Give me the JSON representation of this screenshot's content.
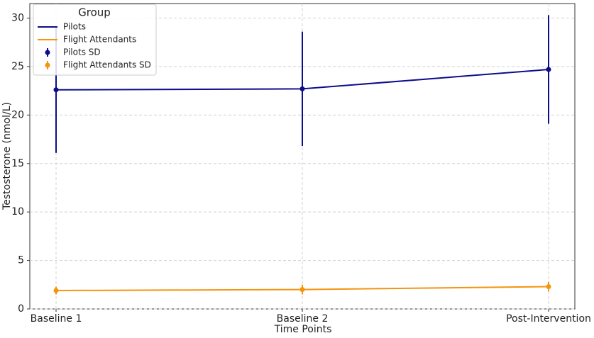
{
  "chart_data": {
    "type": "line",
    "x_label": "Time Points",
    "y_label": "Testosterone (nmol/L)",
    "categories": [
      "Baseline 1",
      "Baseline 2",
      "Post-Intervention"
    ],
    "series": [
      {
        "name": "Pilots",
        "error_name": "Pilots SD",
        "color": "#0d0d8a",
        "values": [
          22.6,
          22.7,
          24.7
        ],
        "errors": [
          6.5,
          5.9,
          5.6
        ]
      },
      {
        "name": "Flight Attendants",
        "error_name": "Flight Attendants SD",
        "color": "#f5940f",
        "values": [
          1.9,
          2.0,
          2.3
        ],
        "errors": [
          0.4,
          0.5,
          0.5
        ]
      }
    ],
    "ylim": [
      0,
      31.5
    ],
    "yticks": [
      0,
      5,
      10,
      15,
      20,
      25,
      30
    ],
    "grid": true,
    "legend_title": "Group",
    "legend_position": "upper-left"
  }
}
